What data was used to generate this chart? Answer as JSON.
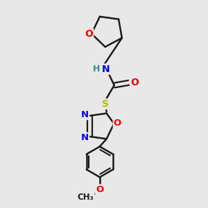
{
  "bg_color": "#e8e8e8",
  "bond_color": "#1a1a1a",
  "bond_width": 1.8,
  "atom_colors": {
    "N": "#0000ee",
    "O": "#ee0000",
    "S": "#bbbb00",
    "C": "#1a1a1a",
    "H": "#3a8a8a"
  },
  "font_size": 10,
  "fig_size": [
    3.0,
    3.0
  ],
  "dpi": 100
}
